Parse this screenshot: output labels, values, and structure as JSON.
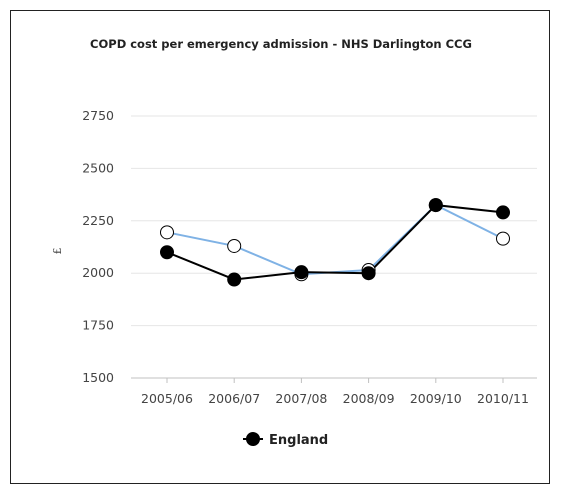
{
  "chart_data": {
    "type": "line",
    "title": "COPD cost per emergency admission - NHS Darlington CCG",
    "xlabel": "",
    "ylabel": "£",
    "categories": [
      "2005/06",
      "2006/07",
      "2007/08",
      "2008/09",
      "2009/10",
      "2010/11"
    ],
    "y_ticks": [
      "1500",
      "1750",
      "2000",
      "2250",
      "2500",
      "2750"
    ],
    "ylim": [
      1500,
      2750
    ],
    "grid": true,
    "legend_position": "bottom-center",
    "series": [
      {
        "name": "England",
        "values": [
          2100,
          1970,
          2005,
          2000,
          2325,
          2290
        ],
        "color": "#000000",
        "marker": "filled-circle"
      },
      {
        "values": [
          2195,
          2130,
          1995,
          2015,
          2325,
          2165
        ],
        "color": "#7fb2e5",
        "marker": "open-circle"
      }
    ]
  }
}
